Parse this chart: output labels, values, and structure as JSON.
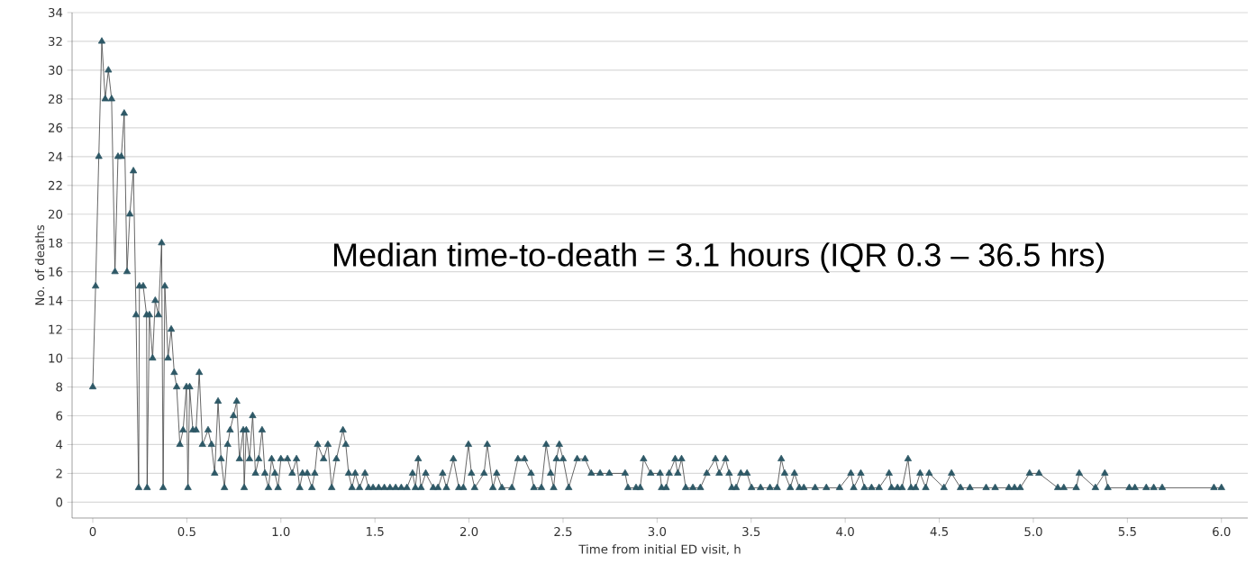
{
  "chart_data": {
    "type": "line",
    "xlabel": "Time from initial ED visit, h",
    "ylabel": "No. of deaths",
    "annotations": [
      "Median time-to-death = 3.1 hours (IQR 0.3 – 36.5 hrs)"
    ],
    "xlim": [
      -0.11,
      6.14
    ],
    "ylim": [
      -1.1,
      34
    ],
    "xticks": [
      0,
      0.5,
      {
        "value": 1,
        "label": "1.0"
      },
      1.5,
      {
        "value": 2,
        "label": "2.0"
      },
      2.5,
      {
        "value": 3,
        "label": "3.0"
      },
      3.5,
      {
        "value": 4,
        "label": "4.0"
      },
      4.5,
      {
        "value": 5,
        "label": "5.0"
      },
      5.5,
      {
        "value": 6,
        "label": "6.0"
      }
    ],
    "yticks": [
      0,
      2,
      4,
      6,
      8,
      10,
      12,
      14,
      16,
      18,
      20,
      22,
      24,
      26,
      28,
      30,
      32,
      34
    ],
    "grid": "y",
    "marker": "triangle",
    "line_style": "solid",
    "series": [
      {
        "color": "#2d5866",
        "x": [
          0.0,
          0.015,
          0.032,
          0.048,
          0.066,
          0.083,
          0.1,
          0.118,
          0.134,
          0.152,
          0.167,
          0.182,
          0.197,
          0.216,
          0.23,
          0.244,
          0.248,
          0.268,
          0.286,
          0.289,
          0.301,
          0.318,
          0.332,
          0.349,
          0.366,
          0.374,
          0.383,
          0.4,
          0.417,
          0.433,
          0.446,
          0.463,
          0.48,
          0.498,
          0.506,
          0.515,
          0.532,
          0.549,
          0.566,
          0.583,
          0.613,
          0.631,
          0.648,
          0.666,
          0.682,
          0.7,
          0.717,
          0.73,
          0.748,
          0.765,
          0.78,
          0.8,
          0.805,
          0.816,
          0.833,
          0.85,
          0.865,
          0.882,
          0.9,
          0.915,
          0.934,
          0.951,
          0.968,
          0.985,
          1.0,
          1.035,
          1.06,
          1.083,
          1.1,
          1.115,
          1.14,
          1.165,
          1.18,
          1.195,
          1.227,
          1.25,
          1.27,
          1.295,
          1.33,
          1.345,
          1.36,
          1.378,
          1.395,
          1.418,
          1.447,
          1.466,
          1.49,
          1.52,
          1.55,
          1.58,
          1.61,
          1.64,
          1.67,
          1.7,
          1.715,
          1.73,
          1.745,
          1.77,
          1.81,
          1.835,
          1.86,
          1.88,
          1.917,
          1.946,
          1.97,
          1.997,
          2.013,
          2.03,
          2.08,
          2.097,
          2.127,
          2.147,
          2.175,
          2.228,
          2.26,
          2.295,
          2.33,
          2.345,
          2.385,
          2.41,
          2.434,
          2.45,
          2.465,
          2.48,
          2.5,
          2.53,
          2.575,
          2.617,
          2.65,
          2.697,
          2.746,
          2.83,
          2.845,
          2.888,
          2.91,
          2.928,
          2.966,
          3.016,
          3.024,
          3.048,
          3.064,
          3.096,
          3.11,
          3.13,
          3.152,
          3.19,
          3.23,
          3.264,
          3.31,
          3.33,
          3.364,
          3.383,
          3.397,
          3.42,
          3.445,
          3.478,
          3.502,
          3.55,
          3.6,
          3.638,
          3.66,
          3.678,
          3.708,
          3.73,
          3.756,
          3.78,
          3.84,
          3.9,
          3.97,
          4.03,
          4.045,
          4.083,
          4.102,
          4.14,
          4.18,
          4.233,
          4.246,
          4.278,
          4.302,
          4.334,
          4.35,
          4.374,
          4.398,
          4.428,
          4.446,
          4.525,
          4.565,
          4.613,
          4.663,
          4.749,
          4.797,
          4.87,
          4.9,
          4.93,
          4.98,
          5.03,
          5.13,
          5.162,
          5.228,
          5.244,
          5.33,
          5.38,
          5.396,
          5.51,
          5.54,
          5.6,
          5.64,
          5.685,
          5.96,
          6.0
        ],
        "values": [
          8,
          15,
          24,
          32,
          28,
          30,
          28,
          16,
          24,
          24,
          27,
          16,
          20,
          23,
          13,
          1,
          15,
          15,
          13,
          1,
          13,
          10,
          14,
          13,
          18,
          1,
          15,
          10,
          12,
          9,
          8,
          4,
          5,
          8,
          1,
          8,
          5,
          5,
          9,
          4,
          5,
          4,
          2,
          7,
          3,
          1,
          4,
          5,
          6,
          7,
          3,
          5,
          1,
          5,
          3,
          6,
          2,
          3,
          5,
          2,
          1,
          3,
          2,
          1,
          3,
          3,
          2,
          3,
          1,
          2,
          2,
          1,
          2,
          4,
          3,
          4,
          1,
          3,
          5,
          4,
          2,
          1,
          2,
          1,
          2,
          1,
          1,
          1,
          1,
          1,
          1,
          1,
          1,
          2,
          1,
          3,
          1,
          2,
          1,
          1,
          2,
          1,
          3,
          1,
          1,
          4,
          2,
          1,
          2,
          4,
          1,
          2,
          1,
          1,
          3,
          3,
          2,
          1,
          1,
          4,
          2,
          1,
          3,
          4,
          3,
          1,
          3,
          3,
          2,
          2,
          2,
          2,
          1,
          1,
          1,
          3,
          2,
          2,
          1,
          1,
          2,
          3,
          2,
          3,
          1,
          1,
          1,
          2,
          3,
          2,
          3,
          2,
          1,
          1,
          2,
          2,
          1,
          1,
          1,
          1,
          3,
          2,
          1,
          2,
          1,
          1,
          1,
          1,
          1,
          2,
          1,
          2,
          1,
          1,
          1,
          2,
          1,
          1,
          1,
          3,
          1,
          1,
          2,
          1,
          2,
          1,
          2,
          1,
          1,
          1,
          1,
          1,
          1,
          1,
          2,
          2,
          1,
          1,
          1,
          2,
          1,
          2,
          1,
          1,
          1,
          1,
          1,
          1,
          1,
          1
        ]
      }
    ]
  }
}
